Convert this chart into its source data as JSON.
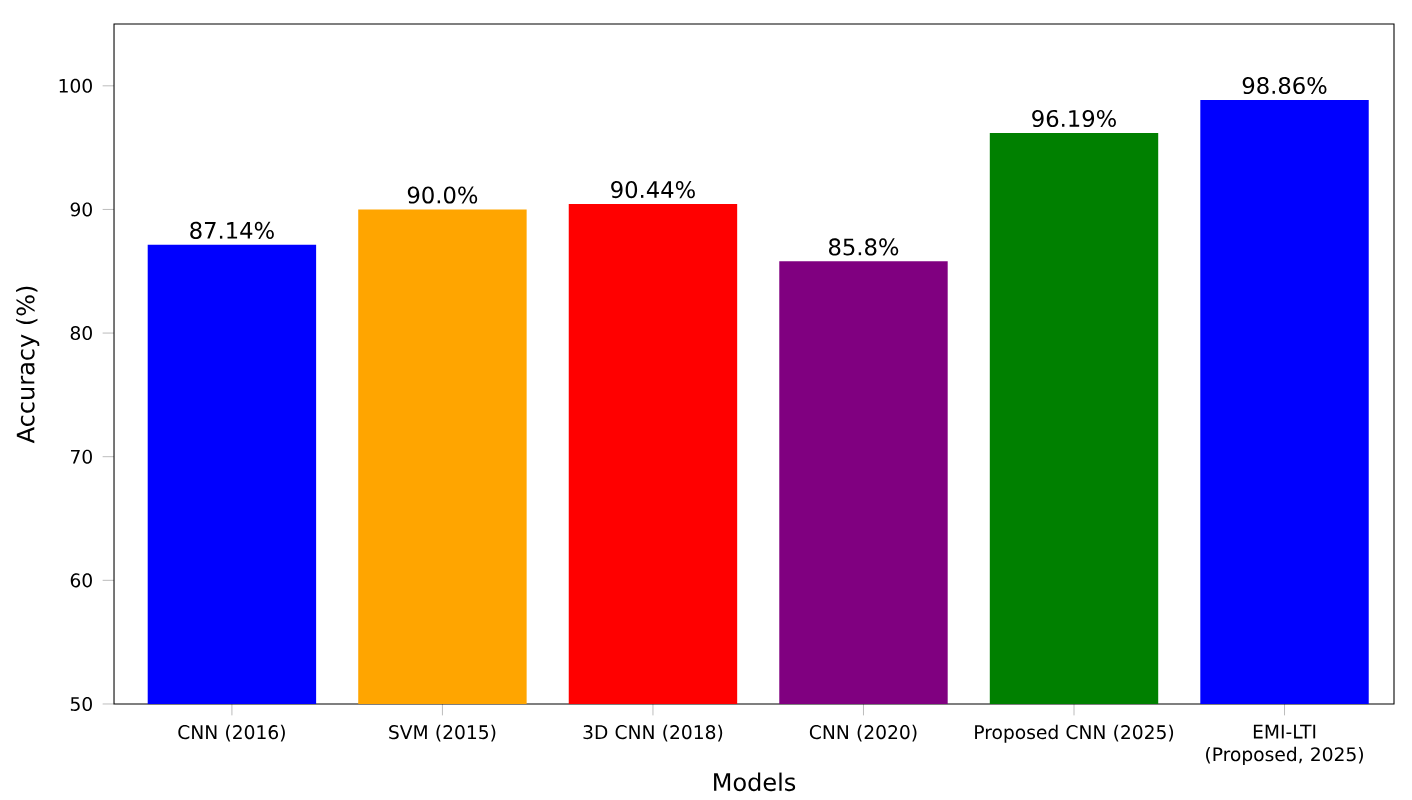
{
  "chart_data": {
    "type": "bar",
    "xlabel": "Models",
    "ylabel": "Accuracy (%)",
    "categories": [
      "CNN (2016)",
      "SVM (2015)",
      "3D CNN (2018)",
      "CNN (2020)",
      "Proposed CNN (2025)",
      "EMI-LTI (Proposed, 2025)"
    ],
    "values": [
      87.14,
      90.0,
      90.44,
      85.8,
      96.19,
      98.86
    ],
    "value_labels": [
      "87.14%",
      "90.0%",
      "90.44%",
      "85.8%",
      "96.19%",
      "98.86%"
    ],
    "colors": [
      "#0000ff",
      "#ffa500",
      "#ff0000",
      "#800080",
      "#008000",
      "#0000ff"
    ],
    "ylim": [
      50,
      105
    ],
    "yticks": [
      50,
      60,
      70,
      80,
      90,
      100
    ]
  }
}
